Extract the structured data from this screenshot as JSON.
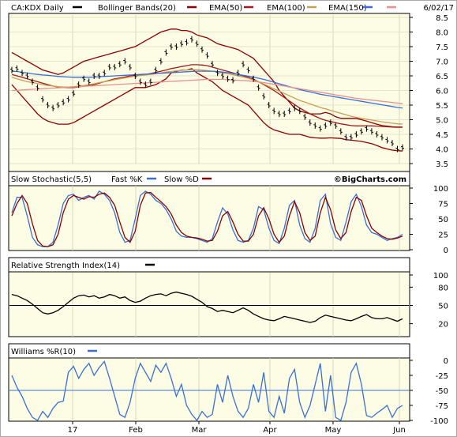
{
  "chart_data": {
    "type": "line",
    "date": "6/02/17",
    "credit": "©BigCharts.com",
    "x_labels": [
      "17",
      "Feb",
      "Mar",
      "Apr",
      "May",
      "Jun"
    ],
    "panels": [
      {
        "id": "price",
        "legend": [
          {
            "text": "CA:KDX Daily",
            "color": "#000000"
          },
          {
            "text": "Bollinger Bands(20)",
            "color": "#8b0000"
          },
          {
            "text": "EMA(50)",
            "color": "#a01a1a"
          },
          {
            "text": "EMA(100)",
            "color": "#c8a050"
          },
          {
            "text": "EMA(150)",
            "color": "#3a6fd8"
          },
          {
            "text": "",
            "color": "#e89090"
          }
        ],
        "ylim": [
          3.5,
          8.5
        ],
        "yticks": [
          3.5,
          4.0,
          4.5,
          5.0,
          5.5,
          6.0,
          6.5,
          7.0,
          7.5,
          8.0,
          8.5
        ],
        "price_series": [
          6.7,
          6.75,
          6.6,
          6.5,
          6.3,
          6.1,
          5.7,
          5.5,
          5.4,
          5.5,
          5.6,
          5.7,
          5.9,
          6.2,
          6.4,
          6.3,
          6.5,
          6.5,
          6.6,
          6.8,
          6.8,
          6.9,
          7.0,
          6.8,
          6.5,
          6.3,
          6.2,
          6.3,
          6.7,
          7.0,
          7.3,
          7.5,
          7.5,
          7.6,
          7.65,
          7.75,
          7.6,
          7.4,
          7.2,
          6.9,
          6.6,
          6.5,
          6.4,
          6.35,
          6.6,
          6.9,
          6.7,
          6.4,
          6.1,
          5.8,
          5.5,
          5.3,
          5.2,
          5.2,
          5.3,
          5.4,
          5.3,
          5.1,
          4.9,
          4.8,
          4.7,
          4.8,
          4.9,
          4.8,
          4.6,
          4.4,
          4.4,
          4.5,
          4.6,
          4.7,
          4.6,
          4.5,
          4.4,
          4.3,
          4.2,
          4.0,
          4.05
        ],
        "series": [
          {
            "name": "Bollinger Bands(20)",
            "color": "#8b0000",
            "values": [
              7.3,
              7.2,
              7.1,
              7.0,
              6.9,
              6.8,
              6.7,
              6.65,
              6.6,
              6.55,
              6.6,
              6.7,
              6.8,
              6.9,
              7.0,
              7.05,
              7.1,
              7.15,
              7.2,
              7.25,
              7.3,
              7.35,
              7.4,
              7.45,
              7.5,
              7.6,
              7.7,
              7.8,
              7.9,
              8.0,
              8.05,
              8.1,
              8.1,
              8.05,
              8.05,
              8.0,
              7.9,
              7.85,
              7.8,
              7.7,
              7.6,
              7.55,
              7.5,
              7.45,
              7.4,
              7.3,
              7.2,
              7.1,
              6.9,
              6.7,
              6.5,
              6.3,
              6.0,
              5.8,
              5.6,
              5.4,
              5.3,
              5.25,
              5.2,
              5.2,
              5.2,
              5.25,
              5.2,
              5.1,
              5.05,
              5.05,
              5.05,
              5.05,
              5.0,
              4.95,
              4.9,
              4.85,
              4.8,
              4.78,
              4.76,
              4.75,
              4.75
            ]
          },
          {
            "name": "Bollinger Bands(20)",
            "color": "#8b0000",
            "values": [
              6.2,
              6.0,
              5.8,
              5.6,
              5.4,
              5.2,
              5.05,
              4.95,
              4.9,
              4.85,
              4.85,
              4.85,
              4.9,
              5.0,
              5.1,
              5.2,
              5.3,
              5.4,
              5.5,
              5.6,
              5.7,
              5.8,
              5.9,
              6.0,
              6.1,
              6.1,
              6.1,
              6.15,
              6.2,
              6.3,
              6.4,
              6.6,
              6.65,
              6.7,
              6.7,
              6.75,
              6.6,
              6.5,
              6.4,
              6.3,
              6.15,
              6.0,
              5.9,
              5.8,
              5.7,
              5.6,
              5.5,
              5.3,
              5.1,
              4.9,
              4.75,
              4.65,
              4.6,
              4.55,
              4.5,
              4.5,
              4.5,
              4.45,
              4.4,
              4.38,
              4.37,
              4.37,
              4.38,
              4.37,
              4.36,
              4.32,
              4.3,
              4.28,
              4.26,
              4.22,
              4.18,
              4.12,
              4.05,
              4.0,
              3.96,
              3.94,
              3.93
            ]
          },
          {
            "name": "EMA(50)",
            "color": "#a01a1a",
            "values": [
              6.55,
              6.5,
              6.45,
              6.4,
              6.35,
              6.3,
              6.25,
              6.2,
              6.15,
              6.12,
              6.1,
              6.1,
              6.1,
              6.12,
              6.15,
              6.17,
              6.2,
              6.25,
              6.3,
              6.35,
              6.4,
              6.43,
              6.46,
              6.5,
              6.52,
              6.53,
              6.55,
              6.58,
              6.62,
              6.66,
              6.7,
              6.75,
              6.78,
              6.82,
              6.85,
              6.88,
              6.88,
              6.87,
              6.85,
              6.8,
              6.75,
              6.7,
              6.65,
              6.6,
              6.55,
              6.5,
              6.45,
              6.38,
              6.3,
              6.2,
              6.1,
              6.0,
              5.88,
              5.76,
              5.64,
              5.52,
              5.4,
              5.3,
              5.2,
              5.12,
              5.04,
              4.98,
              4.94,
              4.9,
              4.86,
              4.83,
              4.8,
              4.79,
              4.79,
              4.79,
              4.79,
              4.78,
              4.77,
              4.76,
              4.75,
              4.74,
              4.74
            ]
          },
          {
            "name": "EMA(100)",
            "color": "#c8a050",
            "values": [
              6.45,
              6.4,
              6.35,
              6.3,
              6.27,
              6.24,
              6.2,
              6.17,
              6.15,
              6.13,
              6.12,
              6.12,
              6.13,
              6.15,
              6.17,
              6.2,
              6.23,
              6.27,
              6.3,
              6.33,
              6.37,
              6.4,
              6.43,
              6.46,
              6.49,
              6.51,
              6.53,
              6.55,
              6.57,
              6.6,
              6.63,
              6.65,
              6.67,
              6.69,
              6.7,
              6.71,
              6.71,
              6.7,
              6.68,
              6.66,
              6.63,
              6.6,
              6.57,
              6.54,
              6.5,
              6.46,
              6.42,
              6.36,
              6.3,
              6.22,
              6.14,
              6.06,
              5.98,
              5.9,
              5.82,
              5.74,
              5.66,
              5.6,
              5.54,
              5.48,
              5.42,
              5.37,
              5.32,
              5.27,
              5.22,
              5.17,
              5.12,
              5.08,
              5.05,
              5.02,
              4.99,
              4.96,
              4.93,
              4.9,
              4.88,
              4.86,
              4.85
            ]
          },
          {
            "name": "EMA(150)",
            "color": "#3a6fd8",
            "values": [
              6.65,
              6.65,
              6.62,
              6.6,
              6.57,
              6.55,
              6.53,
              6.52,
              6.5,
              6.48,
              6.47,
              6.46,
              6.45,
              6.45,
              6.45,
              6.45,
              6.46,
              6.47,
              6.48,
              6.49,
              6.5,
              6.51,
              6.52,
              6.53,
              6.54,
              6.55,
              6.56,
              6.57,
              6.58,
              6.59,
              6.6,
              6.61,
              6.62,
              6.63,
              6.64,
              6.65,
              6.66,
              6.66,
              6.66,
              6.66,
              6.65,
              6.63,
              6.61,
              6.58,
              6.55,
              6.52,
              6.49,
              6.46,
              6.42,
              6.38,
              6.33,
              6.28,
              6.23,
              6.18,
              6.13,
              6.08,
              6.03,
              5.99,
              5.95,
              5.91,
              5.87,
              5.84,
              5.81,
              5.78,
              5.75,
              5.72,
              5.69,
              5.66,
              5.63,
              5.6,
              5.57,
              5.54,
              5.51,
              5.48,
              5.45,
              5.42,
              5.4
            ]
          },
          {
            "name": "",
            "color": "#e89090",
            "values": [
              6.0,
              6.0,
              6.02,
              6.03,
              6.04,
              6.05,
              6.06,
              6.07,
              6.08,
              6.09,
              6.1,
              6.11,
              6.12,
              6.13,
              6.14,
              6.15,
              6.16,
              6.17,
              6.18,
              6.19,
              6.2,
              6.21,
              6.22,
              6.23,
              6.24,
              6.25,
              6.26,
              6.27,
              6.28,
              6.29,
              6.3,
              6.31,
              6.32,
              6.33,
              6.34,
              6.35,
              6.36,
              6.37,
              6.38,
              6.38,
              6.38,
              6.38,
              6.37,
              6.36,
              6.35,
              6.34,
              6.33,
              6.31,
              6.29,
              6.27,
              6.24,
              6.21,
              6.18,
              6.15,
              6.12,
              6.09,
              6.06,
              6.03,
              6.0,
              5.97,
              5.94,
              5.91,
              5.88,
              5.85,
              5.82,
              5.79,
              5.76,
              5.73,
              5.71,
              5.69,
              5.67,
              5.65,
              5.63,
              5.61,
              5.59,
              5.57,
              5.55
            ]
          }
        ]
      },
      {
        "id": "stochastic",
        "legend": [
          {
            "text": "Slow Stochastic(5,5)",
            "color": null
          },
          {
            "text": "Fast %K",
            "color": "#3a6fd8"
          },
          {
            "text": "Slow %D",
            "color": "#8b0000"
          }
        ],
        "ylim": [
          0,
          100
        ],
        "yticks": [
          0,
          25,
          50,
          75,
          100
        ],
        "series": [
          {
            "name": "Fast %K",
            "color": "#3a6fd8",
            "values": [
              60,
              85,
              85,
              55,
              20,
              8,
              5,
              5,
              12,
              40,
              75,
              88,
              90,
              80,
              85,
              88,
              82,
              95,
              90,
              80,
              60,
              28,
              12,
              15,
              50,
              88,
              95,
              90,
              80,
              75,
              65,
              50,
              30,
              22,
              20,
              20,
              18,
              15,
              12,
              18,
              45,
              68,
              58,
              32,
              15,
              12,
              15,
              35,
              70,
              65,
              35,
              15,
              10,
              35,
              72,
              80,
              40,
              18,
              12,
              35,
              80,
              90,
              42,
              20,
              15,
              45,
              78,
              90,
              70,
              40,
              28,
              25,
              20,
              15,
              18,
              20,
              25
            ]
          },
          {
            "name": "Slow %D",
            "color": "#8b0000",
            "values": [
              55,
              75,
              88,
              75,
              42,
              15,
              6,
              5,
              8,
              25,
              60,
              82,
              88,
              85,
              82,
              86,
              85,
              90,
              92,
              85,
              72,
              45,
              20,
              12,
              30,
              72,
              92,
              93,
              85,
              78,
              70,
              58,
              40,
              28,
              22,
              20,
              19,
              17,
              14,
              15,
              30,
              55,
              62,
              45,
              25,
              14,
              14,
              25,
              55,
              68,
              50,
              25,
              12,
              22,
              55,
              78,
              60,
              28,
              15,
              22,
              60,
              85,
              65,
              32,
              18,
              28,
              62,
              85,
              80,
              55,
              35,
              28,
              22,
              18,
              17,
              19,
              22
            ]
          }
        ]
      },
      {
        "id": "rsi",
        "legend": [
          {
            "text": "Relative Strength Index(14)",
            "color": "#000000"
          }
        ],
        "ylim": [
          0,
          100
        ],
        "yticks": [
          20,
          50,
          80,
          100
        ],
        "reference_lines": [
          50
        ],
        "series": [
          {
            "name": "Relative Strength Index(14)",
            "color": "#000000",
            "values": [
              68,
              66,
              62,
              58,
              52,
              45,
              38,
              36,
              38,
              42,
              48,
              55,
              62,
              66,
              67,
              64,
              66,
              62,
              64,
              68,
              66,
              62,
              64,
              58,
              55,
              57,
              62,
              66,
              68,
              69,
              66,
              70,
              72,
              70,
              68,
              65,
              60,
              55,
              48,
              45,
              40,
              42,
              40,
              38,
              42,
              46,
              42,
              36,
              32,
              28,
              26,
              25,
              28,
              32,
              30,
              28,
              26,
              24,
              22,
              24,
              30,
              34,
              32,
              30,
              28,
              26,
              25,
              28,
              32,
              35,
              30,
              28,
              28,
              30,
              27,
              24,
              28
            ]
          }
        ]
      },
      {
        "id": "williams",
        "legend": [
          {
            "text": "Williams %R(10)",
            "color": "#3a6fd8"
          }
        ],
        "ylim": [
          -100,
          0
        ],
        "yticks": [
          -100,
          -75,
          -50,
          -25,
          0
        ],
        "reference_lines": [
          -50
        ],
        "series": [
          {
            "name": "Williams %R(10)",
            "color": "#3a6fd8",
            "values": [
              -25,
              -45,
              -60,
              -80,
              -95,
              -100,
              -85,
              -95,
              -80,
              -70,
              -68,
              -20,
              -10,
              -30,
              -15,
              -5,
              -25,
              -12,
              -2,
              -30,
              -60,
              -90,
              -95,
              -70,
              -30,
              -5,
              -20,
              -35,
              -8,
              -20,
              -5,
              -30,
              -60,
              -40,
              -75,
              -90,
              -100,
              -85,
              -95,
              -90,
              -40,
              -70,
              -25,
              -60,
              -85,
              -95,
              -80,
              -40,
              -70,
              -20,
              -85,
              -95,
              -60,
              -88,
              -30,
              -15,
              -70,
              -95,
              -75,
              -40,
              -5,
              -85,
              -25,
              -95,
              -100,
              -70,
              -20,
              -5,
              -40,
              -92,
              -95,
              -88,
              -82,
              -75,
              -95,
              -80,
              -75
            ]
          }
        ]
      }
    ]
  }
}
